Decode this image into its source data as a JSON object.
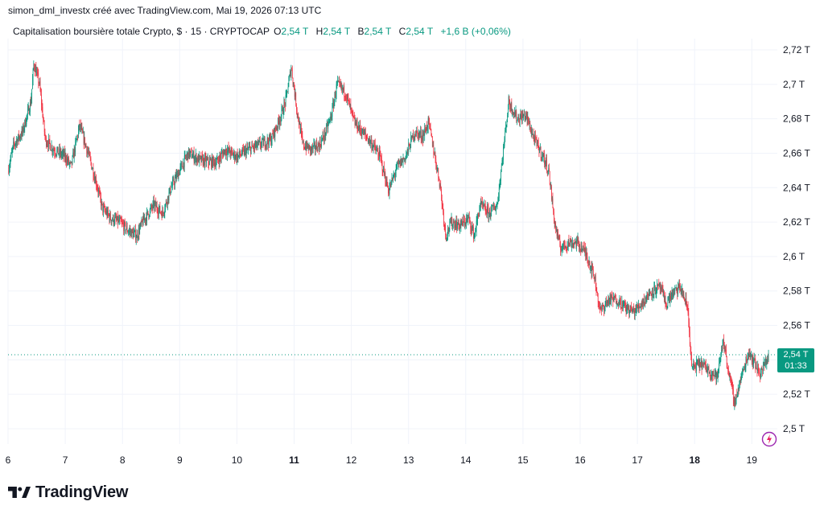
{
  "header": {
    "attribution": "simon_dml_investx créé avec TradingView.com, Mai 19, 2026 07:13 UTC"
  },
  "legend": {
    "symbol": "Capitalisation boursière totale Crypto, $ · 15 · CRYPTOCAP",
    "o_key": "O",
    "o_val": "2,54 T",
    "h_key": "H",
    "h_val": "2,54 T",
    "b_key": "B",
    "b_val": "2,54 T",
    "c_key": "C",
    "c_val": "2,54 T",
    "change": "+1,6 B (+0,06%)"
  },
  "price_badge": {
    "price": "2,54 T",
    "countdown": "01:33"
  },
  "logo": {
    "text": "TradingView",
    "icon": "tradingview-logo-icon"
  },
  "colors": {
    "up": "#089981",
    "down": "#f23645",
    "grid": "#f0f3fa",
    "text": "#131722",
    "current_line": "#089981"
  },
  "chart_data": {
    "type": "candlestick",
    "x_ticks": [
      {
        "label": "6",
        "day": 6,
        "bold": false
      },
      {
        "label": "7",
        "day": 7,
        "bold": false
      },
      {
        "label": "8",
        "day": 8,
        "bold": false
      },
      {
        "label": "9",
        "day": 9,
        "bold": false
      },
      {
        "label": "10",
        "day": 10,
        "bold": false
      },
      {
        "label": "11",
        "day": 11,
        "bold": true
      },
      {
        "label": "12",
        "day": 12,
        "bold": false
      },
      {
        "label": "13",
        "day": 13,
        "bold": false
      },
      {
        "label": "14",
        "day": 14,
        "bold": false
      },
      {
        "label": "15",
        "day": 15,
        "bold": false
      },
      {
        "label": "16",
        "day": 16,
        "bold": false
      },
      {
        "label": "17",
        "day": 17,
        "bold": false
      },
      {
        "label": "18",
        "day": 18,
        "bold": true
      },
      {
        "label": "19",
        "day": 19,
        "bold": false
      }
    ],
    "y_ticks": [
      {
        "label": "2,72 T",
        "value": 2.72
      },
      {
        "label": "2,7 T",
        "value": 2.7
      },
      {
        "label": "2,68 T",
        "value": 2.68
      },
      {
        "label": "2,66 T",
        "value": 2.66
      },
      {
        "label": "2,64 T",
        "value": 2.64
      },
      {
        "label": "2,62 T",
        "value": 2.62
      },
      {
        "label": "2,6 T",
        "value": 2.6
      },
      {
        "label": "2,58 T",
        "value": 2.58
      },
      {
        "label": "2,56 T",
        "value": 2.56
      },
      {
        "label": "2,54 T",
        "value": 2.54
      },
      {
        "label": "2,52 T",
        "value": 2.52
      },
      {
        "label": "2,5 T",
        "value": 2.5
      }
    ],
    "current_price": 2.543,
    "close_path": [
      [
        6.0,
        2.65
      ],
      [
        6.1,
        2.665
      ],
      [
        6.25,
        2.672
      ],
      [
        6.4,
        2.69
      ],
      [
        6.45,
        2.712
      ],
      [
        6.55,
        2.7
      ],
      [
        6.65,
        2.668
      ],
      [
        6.8,
        2.662
      ],
      [
        7.0,
        2.658
      ],
      [
        7.1,
        2.652
      ],
      [
        7.25,
        2.676
      ],
      [
        7.4,
        2.66
      ],
      [
        7.55,
        2.642
      ],
      [
        7.65,
        2.628
      ],
      [
        7.8,
        2.622
      ],
      [
        7.95,
        2.62
      ],
      [
        8.1,
        2.615
      ],
      [
        8.25,
        2.612
      ],
      [
        8.35,
        2.62
      ],
      [
        8.55,
        2.63
      ],
      [
        8.7,
        2.625
      ],
      [
        8.85,
        2.64
      ],
      [
        9.0,
        2.65
      ],
      [
        9.15,
        2.66
      ],
      [
        9.35,
        2.656
      ],
      [
        9.5,
        2.655
      ],
      [
        9.65,
        2.655
      ],
      [
        9.8,
        2.662
      ],
      [
        10.0,
        2.658
      ],
      [
        10.2,
        2.662
      ],
      [
        10.4,
        2.665
      ],
      [
        10.6,
        2.668
      ],
      [
        10.75,
        2.68
      ],
      [
        10.85,
        2.69
      ],
      [
        10.95,
        2.71
      ],
      [
        11.05,
        2.685
      ],
      [
        11.15,
        2.665
      ],
      [
        11.3,
        2.662
      ],
      [
        11.45,
        2.665
      ],
      [
        11.55,
        2.672
      ],
      [
        11.65,
        2.682
      ],
      [
        11.75,
        2.7
      ],
      [
        11.9,
        2.695
      ],
      [
        12.05,
        2.678
      ],
      [
        12.2,
        2.672
      ],
      [
        12.35,
        2.666
      ],
      [
        12.5,
        2.658
      ],
      [
        12.65,
        2.638
      ],
      [
        12.8,
        2.652
      ],
      [
        12.95,
        2.658
      ],
      [
        13.1,
        2.672
      ],
      [
        13.25,
        2.67
      ],
      [
        13.35,
        2.678
      ],
      [
        13.45,
        2.66
      ],
      [
        13.55,
        2.642
      ],
      [
        13.65,
        2.612
      ],
      [
        13.75,
        2.62
      ],
      [
        13.9,
        2.618
      ],
      [
        14.05,
        2.622
      ],
      [
        14.15,
        2.612
      ],
      [
        14.25,
        2.63
      ],
      [
        14.4,
        2.625
      ],
      [
        14.55,
        2.63
      ],
      [
        14.65,
        2.66
      ],
      [
        14.75,
        2.69
      ],
      [
        14.9,
        2.68
      ],
      [
        15.05,
        2.682
      ],
      [
        15.2,
        2.668
      ],
      [
        15.35,
        2.658
      ],
      [
        15.45,
        2.65
      ],
      [
        15.55,
        2.62
      ],
      [
        15.65,
        2.605
      ],
      [
        15.8,
        2.608
      ],
      [
        15.95,
        2.608
      ],
      [
        16.1,
        2.602
      ],
      [
        16.25,
        2.588
      ],
      [
        16.35,
        2.568
      ],
      [
        16.5,
        2.575
      ],
      [
        16.65,
        2.575
      ],
      [
        16.8,
        2.57
      ],
      [
        16.95,
        2.568
      ],
      [
        17.1,
        2.574
      ],
      [
        17.25,
        2.58
      ],
      [
        17.4,
        2.582
      ],
      [
        17.5,
        2.572
      ],
      [
        17.6,
        2.578
      ],
      [
        17.75,
        2.582
      ],
      [
        17.88,
        2.57
      ],
      [
        17.95,
        2.535
      ],
      [
        18.1,
        2.538
      ],
      [
        18.25,
        2.534
      ],
      [
        18.4,
        2.53
      ],
      [
        18.5,
        2.552
      ],
      [
        18.6,
        2.532
      ],
      [
        18.7,
        2.515
      ],
      [
        18.8,
        2.528
      ],
      [
        18.95,
        2.545
      ],
      [
        19.05,
        2.538
      ],
      [
        19.15,
        2.532
      ],
      [
        19.3,
        2.543
      ]
    ]
  }
}
